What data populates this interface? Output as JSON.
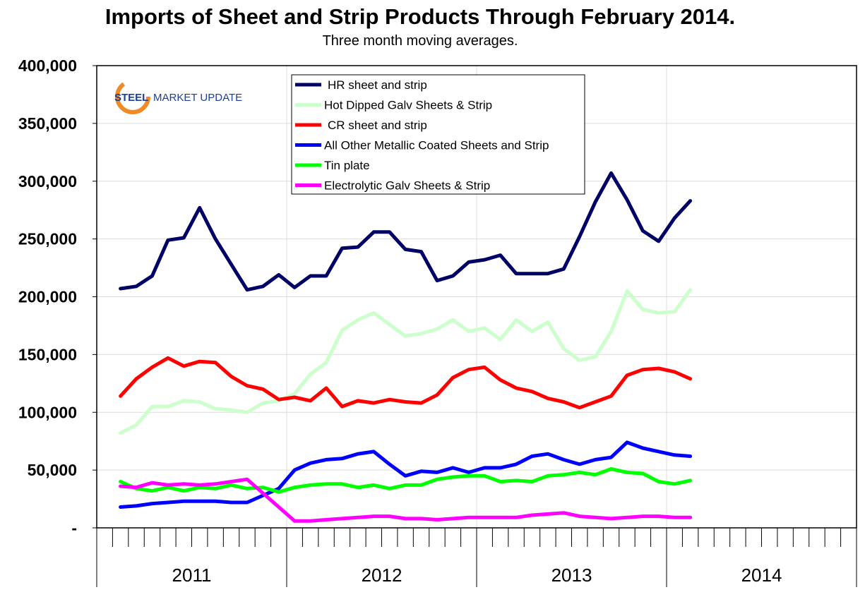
{
  "chart_data": {
    "type": "line",
    "title": "Imports of Sheet and Strip Products Through February 2014.",
    "subtitle": "Three month moving averages.",
    "xlabel": "",
    "ylabel": "",
    "ylim": [
      0,
      400000
    ],
    "yticks": [
      0,
      50000,
      100000,
      150000,
      200000,
      250000,
      300000,
      350000,
      400000
    ],
    "ytick_labels": [
      "-",
      "50,000",
      "100,000",
      "150,000",
      "200,000",
      "250,000",
      "300,000",
      "350,000",
      "400,000"
    ],
    "x_year_labels": [
      "2011",
      "2012",
      "2013",
      "2014"
    ],
    "x_start": "2011-02",
    "x_end": "2014-02",
    "grid": true,
    "legend_placement": "top-center",
    "series": [
      {
        "name": "HR sheet and strip",
        "color": "#000066",
        "values": [
          207000,
          209000,
          218000,
          249000,
          251000,
          277000,
          250000,
          228000,
          206000,
          209000,
          219000,
          208000,
          218000,
          218000,
          242000,
          243000,
          256000,
          256000,
          241000,
          239000,
          214000,
          218000,
          230000,
          232000,
          236000,
          220000,
          220000,
          220000,
          224000,
          252000,
          282000,
          307000,
          284000,
          257000,
          248000,
          268000,
          283000
        ]
      },
      {
        "name": "Hot Dipped Galv Sheets & Strip",
        "color": "#ccffcc",
        "values": [
          82000,
          89000,
          105000,
          105000,
          110000,
          109000,
          103000,
          102000,
          100000,
          108000,
          110000,
          116000,
          133000,
          143000,
          171000,
          180000,
          186000,
          176000,
          166000,
          168000,
          172000,
          180000,
          170000,
          173000,
          163000,
          180000,
          170000,
          178000,
          155000,
          145000,
          148000,
          170000,
          205000,
          189000,
          186000,
          187000,
          206000
        ]
      },
      {
        "name": "CR sheet and strip",
        "color": "#ff0000",
        "values": [
          114000,
          129000,
          139000,
          147000,
          140000,
          144000,
          143000,
          131000,
          123000,
          120000,
          111000,
          113000,
          110000,
          121000,
          105000,
          110000,
          108000,
          111000,
          109000,
          108000,
          115000,
          130000,
          137000,
          139000,
          128000,
          121000,
          118000,
          112000,
          109000,
          104000,
          109000,
          114000,
          132000,
          137000,
          138000,
          135000,
          129000
        ]
      },
      {
        "name": "All Other Metallic Coated Sheets and Strip",
        "color": "#0000ff",
        "values": [
          18000,
          19000,
          21000,
          22000,
          23000,
          23000,
          23000,
          22000,
          22000,
          28000,
          34000,
          50000,
          56000,
          59000,
          60000,
          64000,
          66000,
          55000,
          45000,
          49000,
          48000,
          52000,
          48000,
          52000,
          52000,
          55000,
          62000,
          64000,
          59000,
          55000,
          59000,
          61000,
          74000,
          69000,
          66000,
          63000,
          62000
        ]
      },
      {
        "name": "Tin plate",
        "color": "#00ff00",
        "values": [
          40000,
          34000,
          32000,
          35000,
          32000,
          35000,
          34000,
          37000,
          34000,
          35000,
          31000,
          35000,
          37000,
          38000,
          38000,
          35000,
          37000,
          34000,
          37000,
          37000,
          42000,
          44000,
          45000,
          45000,
          40000,
          41000,
          40000,
          45000,
          46000,
          48000,
          46000,
          51000,
          48000,
          47000,
          40000,
          38000,
          41000
        ]
      },
      {
        "name": "Electrolytic Galv Sheets & Strip",
        "color": "#ff00ff",
        "values": [
          36000,
          35000,
          39000,
          37000,
          38000,
          37000,
          38000,
          40000,
          42000,
          30000,
          18000,
          6000,
          6000,
          7000,
          8000,
          9000,
          10000,
          10000,
          8000,
          8000,
          7000,
          8000,
          9000,
          9000,
          9000,
          9000,
          11000,
          12000,
          13000,
          10000,
          9000,
          8000,
          9000,
          10000,
          10000,
          9000,
          9000
        ]
      }
    ]
  },
  "logo": {
    "text_a": "STEEL",
    "text_b": "MARKET UPDATE"
  }
}
